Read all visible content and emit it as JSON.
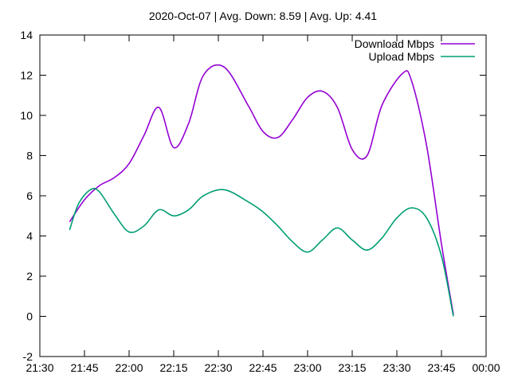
{
  "chart_data": {
    "type": "line",
    "title": "2020-Oct-07  |  Avg. Down: 8.59  |  Avg. Up: 4.41",
    "xlabel": "",
    "ylabel": "",
    "x_unit": "time (HH:MM)",
    "xlim": [
      "21:30",
      "00:00"
    ],
    "ylim": [
      -2,
      14
    ],
    "x_ticks": [
      "21:30",
      "21:45",
      "22:00",
      "22:15",
      "22:30",
      "22:45",
      "23:00",
      "23:15",
      "23:30",
      "23:45",
      "00:00"
    ],
    "y_ticks": [
      -2,
      0,
      2,
      4,
      6,
      8,
      10,
      12,
      14
    ],
    "grid": false,
    "legend_position": "top-right",
    "series": [
      {
        "name": "Download Mbps",
        "color": "#9400d3",
        "x": [
          "21:40",
          "21:45",
          "21:50",
          "21:55",
          "22:00",
          "22:05",
          "22:10",
          "22:15",
          "22:20",
          "22:25",
          "22:32",
          "22:40",
          "22:45",
          "22:50",
          "22:55",
          "23:00",
          "23:05",
          "23:10",
          "23:15",
          "23:20",
          "23:25",
          "23:32",
          "23:35",
          "23:40",
          "23:45",
          "23:49"
        ],
        "y": [
          4.7,
          5.8,
          6.5,
          6.9,
          7.6,
          9.0,
          10.4,
          8.4,
          9.6,
          12.0,
          12.4,
          10.5,
          9.2,
          8.9,
          9.8,
          10.9,
          11.2,
          10.4,
          8.3,
          8.0,
          10.5,
          12.1,
          11.7,
          8.5,
          3.6,
          0.1
        ]
      },
      {
        "name": "Upload Mbps",
        "color": "#009e73",
        "x": [
          "21:40",
          "21:43",
          "21:47",
          "21:50",
          "21:55",
          "22:00",
          "22:05",
          "22:10",
          "22:15",
          "22:20",
          "22:25",
          "22:32",
          "22:40",
          "22:45",
          "22:50",
          "22:55",
          "23:00",
          "23:05",
          "23:10",
          "23:15",
          "23:20",
          "23:25",
          "23:30",
          "23:35",
          "23:40",
          "23:45",
          "23:49"
        ],
        "y": [
          4.3,
          5.6,
          6.3,
          6.2,
          5.1,
          4.2,
          4.5,
          5.3,
          5.0,
          5.3,
          6.0,
          6.3,
          5.7,
          5.2,
          4.5,
          3.7,
          3.2,
          3.8,
          4.4,
          3.8,
          3.3,
          3.9,
          4.9,
          5.4,
          4.9,
          3.0,
          0.0
        ]
      }
    ]
  }
}
